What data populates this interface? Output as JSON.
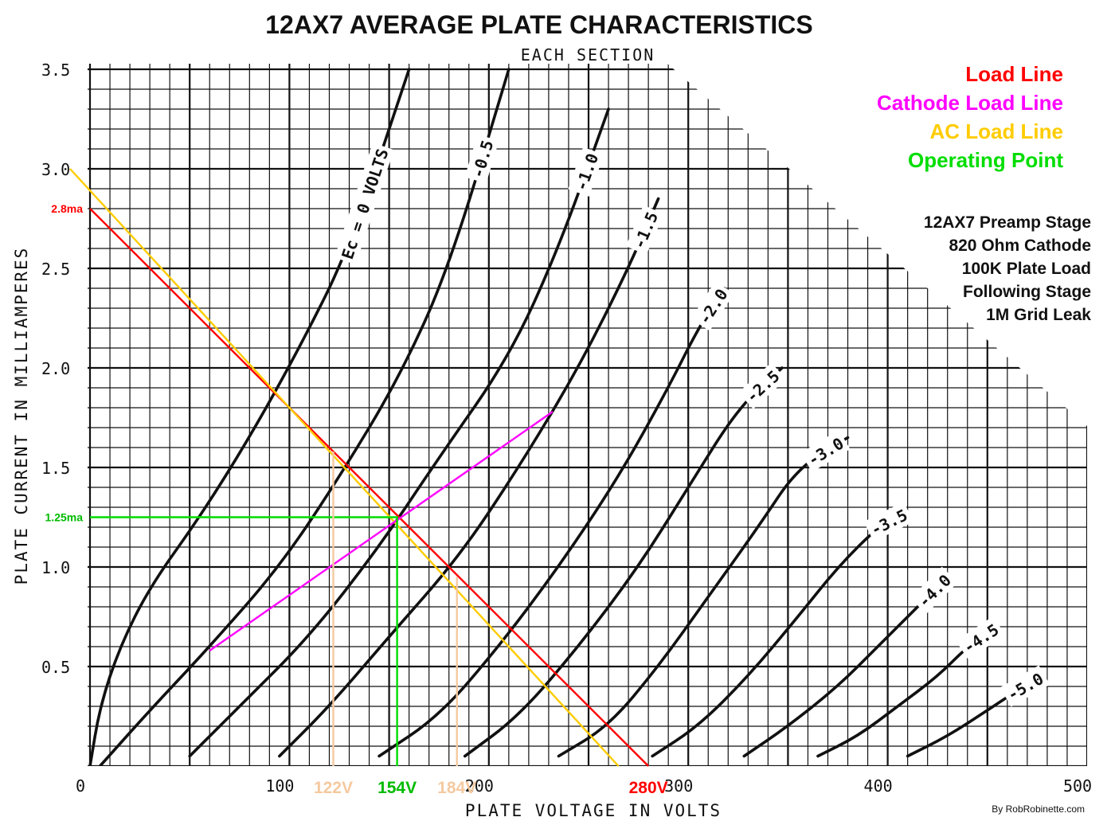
{
  "chart_data": {
    "type": "line",
    "title": "12AX7 AVERAGE PLATE CHARACTERISTICS",
    "subtitle": "EACH SECTION",
    "xlabel": "PLATE VOLTAGE IN VOLTS",
    "ylabel": "PLATE CURRENT IN MILLIAMPERES",
    "xlim": [
      0,
      500
    ],
    "ylim": [
      0,
      3.5
    ],
    "x_ticks": [
      {
        "value": 0,
        "label": "0"
      },
      {
        "value": 100,
        "label": "100"
      },
      {
        "value": 200,
        "label": "200"
      },
      {
        "value": 300,
        "label": "300"
      },
      {
        "value": 400,
        "label": "400"
      },
      {
        "value": 500,
        "label": "500"
      }
    ],
    "y_ticks": [
      {
        "value": 0.5,
        "label": "0.5"
      },
      {
        "value": 1.0,
        "label": "1.0"
      },
      {
        "value": 1.5,
        "label": "1.5"
      },
      {
        "value": 2.0,
        "label": "2.0"
      },
      {
        "value": 2.5,
        "label": "2.5"
      },
      {
        "value": 3.0,
        "label": "3.0"
      },
      {
        "value": 3.5,
        "label": "3.5"
      }
    ],
    "grid": true,
    "curves": [
      {
        "label": "Ec = 0 VOLTS",
        "x": [
          0,
          5,
          15,
          30,
          55,
          80,
          105,
          130,
          160
        ],
        "y": [
          0,
          0.3,
          0.6,
          0.9,
          1.25,
          1.65,
          2.1,
          2.6,
          3.5
        ]
      },
      {
        "label": "-0.5",
        "x": [
          5,
          30,
          60,
          95,
          125,
          155,
          180,
          210
        ],
        "y": [
          0,
          0.28,
          0.6,
          1.0,
          1.45,
          1.95,
          2.5,
          3.5
        ]
      },
      {
        "label": "-1.0",
        "x": [
          50,
          75,
          110,
          145,
          175,
          210,
          235,
          260
        ],
        "y": [
          0.05,
          0.3,
          0.65,
          1.1,
          1.55,
          2.05,
          2.6,
          3.3
        ]
      },
      {
        "label": "-1.5",
        "x": [
          95,
          120,
          150,
          185,
          215,
          245,
          270,
          285
        ],
        "y": [
          0.05,
          0.3,
          0.65,
          1.05,
          1.5,
          2.0,
          2.5,
          2.85
        ]
      },
      {
        "label": "-2.0",
        "x": [
          145,
          175,
          205,
          235,
          265,
          290,
          305,
          318
        ],
        "y": [
          0.05,
          0.25,
          0.6,
          1.0,
          1.45,
          1.9,
          2.2,
          2.4
        ]
      },
      {
        "label": "-2.5",
        "x": [
          188,
          215,
          245,
          275,
          300,
          325,
          347
        ],
        "y": [
          0.05,
          0.25,
          0.6,
          1.0,
          1.4,
          1.8,
          2.0
        ]
      },
      {
        "label": "-3.0",
        "x": [
          235,
          260,
          285,
          310,
          335,
          355,
          380
        ],
        "y": [
          0.05,
          0.2,
          0.5,
          0.85,
          1.2,
          1.5,
          1.65
        ]
      },
      {
        "label": "-3.5",
        "x": [
          282,
          305,
          330,
          355,
          375,
          395,
          405
        ],
        "y": [
          0.05,
          0.2,
          0.45,
          0.75,
          1.0,
          1.2,
          1.25
        ]
      },
      {
        "label": "-4.0",
        "x": [
          328,
          350,
          375,
          395,
          415,
          430
        ],
        "y": [
          0.05,
          0.2,
          0.4,
          0.6,
          0.8,
          0.95
        ]
      },
      {
        "label": "-4.5",
        "x": [
          365,
          385,
          405,
          425,
          440,
          452
        ],
        "y": [
          0.05,
          0.15,
          0.3,
          0.45,
          0.6,
          0.68
        ]
      },
      {
        "label": "-5.0",
        "x": [
          410,
          430,
          450,
          465,
          472
        ],
        "y": [
          0.05,
          0.15,
          0.28,
          0.38,
          0.42
        ]
      }
    ],
    "overlays": [
      {
        "name": "Load Line",
        "color": "#ff0000",
        "x": [
          0,
          280
        ],
        "y": [
          2.8,
          0
        ]
      },
      {
        "name": "AC Load Line",
        "color": "#ffcc00",
        "x": [
          -10,
          265
        ],
        "y": [
          3.0,
          0
        ]
      },
      {
        "name": "Cathode Load Line",
        "color": "#ff00ff",
        "x": [
          60,
          232
        ],
        "y": [
          0.58,
          1.78
        ]
      },
      {
        "name": "Operating Point",
        "color": "#00dd00",
        "x": [
          0,
          154,
          154
        ],
        "y": [
          1.25,
          1.25,
          0
        ]
      },
      {
        "name": "122V marker",
        "color": "#f5c9a0",
        "x": [
          122,
          122
        ],
        "y": [
          0,
          1.58
        ]
      },
      {
        "name": "184V marker",
        "color": "#f5c9a0",
        "x": [
          184,
          184
        ],
        "y": [
          0,
          0.95
        ]
      }
    ],
    "annotations": [
      {
        "text": "2.8ma",
        "color": "#ff0000",
        "axis": "y",
        "value": 2.8
      },
      {
        "text": "1.25ma",
        "color": "#00bb00",
        "axis": "y",
        "value": 1.25
      },
      {
        "text": "122V",
        "color": "#f5c9a0",
        "axis": "x",
        "value": 122
      },
      {
        "text": "154V",
        "color": "#00bb00",
        "axis": "x",
        "value": 154
      },
      {
        "text": "184V",
        "color": "#f5c9a0",
        "axis": "x",
        "value": 184
      },
      {
        "text": "280V",
        "color": "#ff0000",
        "axis": "x",
        "value": 280
      }
    ]
  },
  "legend": [
    {
      "label": "Load Line",
      "color": "#ff0000"
    },
    {
      "label": "Cathode Load Line",
      "color": "#ff00ff"
    },
    {
      "label": "AC Load Line",
      "color": "#ffcc00"
    },
    {
      "label": "Operating Point",
      "color": "#00dd00"
    }
  ],
  "notes": [
    "12AX7 Preamp Stage",
    "820 Ohm Cathode",
    "100K Plate Load",
    "Following Stage",
    "1M Grid Leak"
  ],
  "credit": "By RobRobinette.com"
}
